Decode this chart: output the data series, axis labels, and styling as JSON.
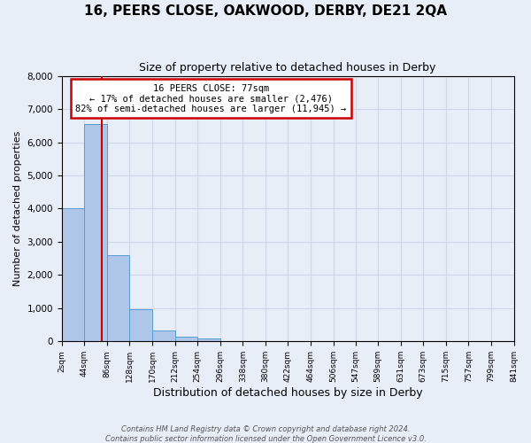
{
  "title": "16, PEERS CLOSE, OAKWOOD, DERBY, DE21 2QA",
  "subtitle": "Size of property relative to detached houses in Derby",
  "xlabel": "Distribution of detached houses by size in Derby",
  "ylabel": "Number of detached properties",
  "footer_line1": "Contains HM Land Registry data © Crown copyright and database right 2024.",
  "footer_line2": "Contains public sector information licensed under the Open Government Licence v3.0.",
  "annotation_title": "16 PEERS CLOSE: 77sqm",
  "annotation_line1": "← 17% of detached houses are smaller (2,476)",
  "annotation_line2": "82% of semi-detached houses are larger (11,945) →",
  "property_size_sqm": 77,
  "bar_edges": [
    2,
    44,
    86,
    128,
    170,
    212,
    254,
    296,
    338,
    380,
    422,
    464,
    506,
    547,
    589,
    631,
    673,
    715,
    757,
    799,
    841
  ],
  "bar_heights": [
    4000,
    6550,
    2600,
    960,
    320,
    155,
    95,
    0,
    0,
    0,
    0,
    0,
    0,
    0,
    0,
    0,
    0,
    0,
    0,
    0
  ],
  "bar_color": "#aec6e8",
  "bar_edge_color": "#5b9bd5",
  "vline_color": "#cc0000",
  "vline_x": 77,
  "ylim": [
    0,
    8000
  ],
  "yticks": [
    0,
    1000,
    2000,
    3000,
    4000,
    5000,
    6000,
    7000,
    8000
  ],
  "annotation_box_color": "#cc0000",
  "annotation_bg_color": "#ffffff",
  "grid_color": "#d0d8e8",
  "background_color": "#e8eef8",
  "title_fontsize": 11,
  "subtitle_fontsize": 9,
  "xlabel_fontsize": 9,
  "ylabel_fontsize": 8,
  "tick_fontsize": 6.5,
  "annotation_fontsize": 7.5,
  "footer_fontsize": 6
}
